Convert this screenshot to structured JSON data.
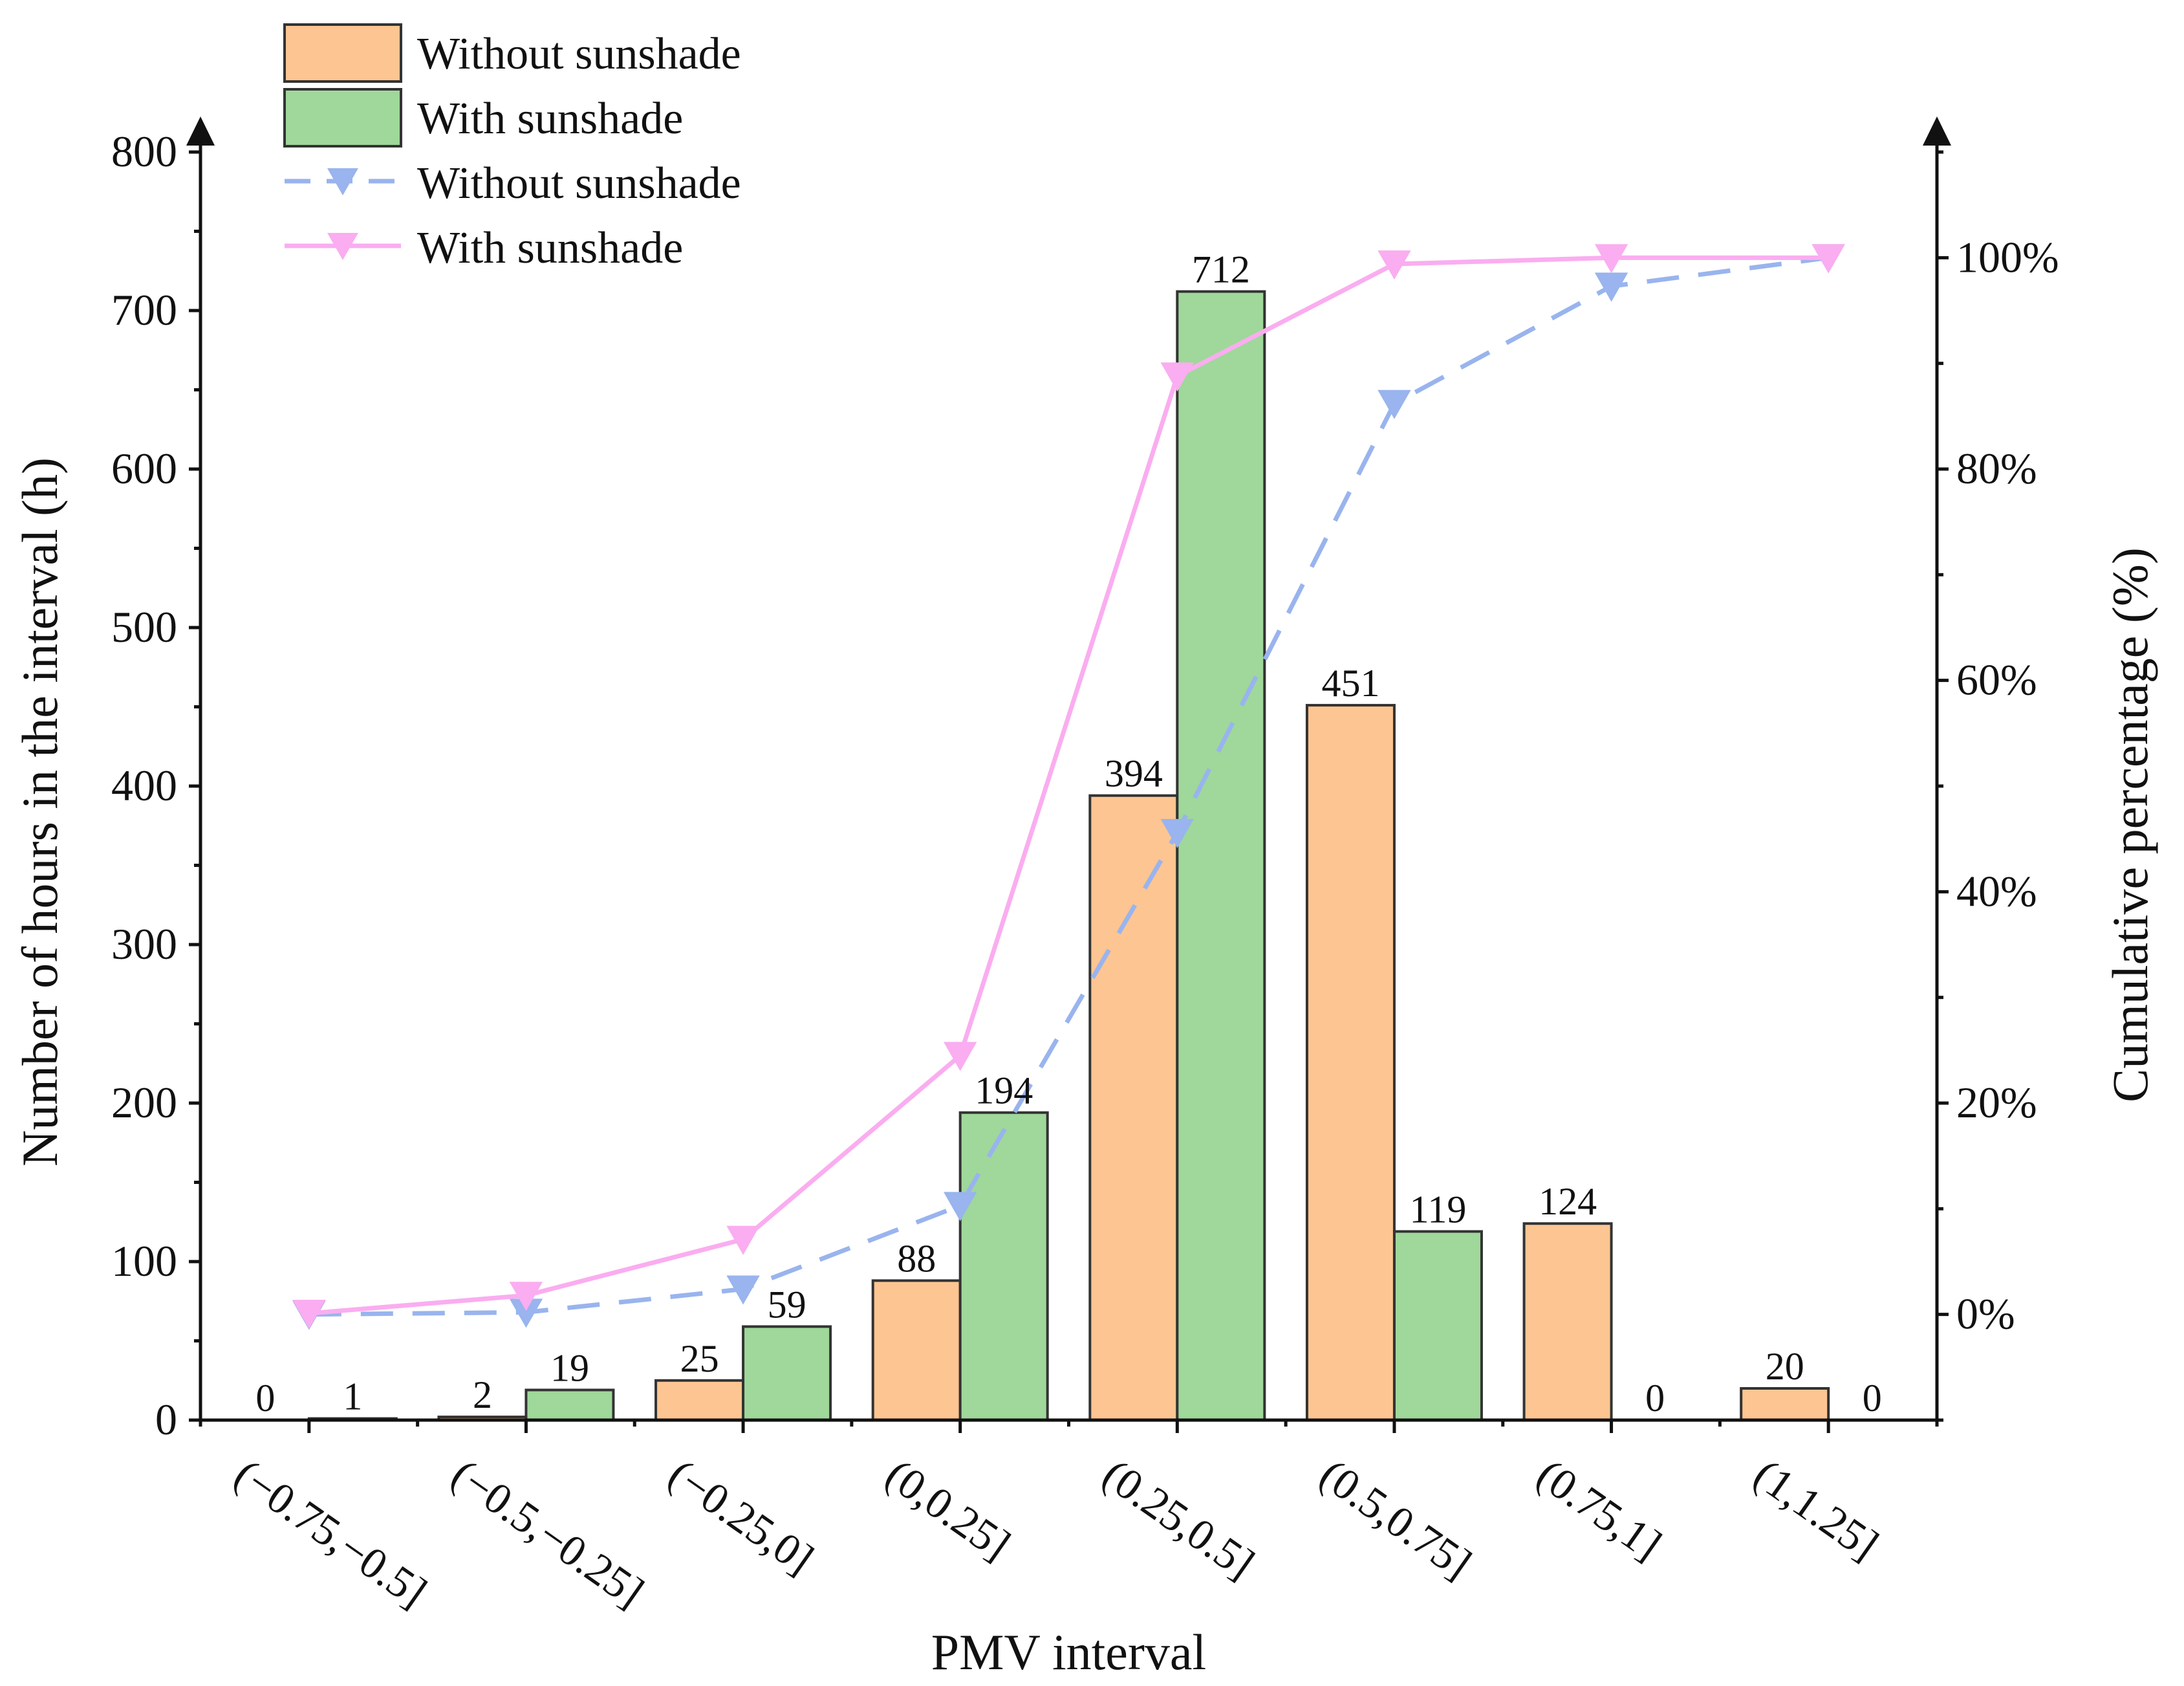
{
  "chart_data": {
    "type": "bar",
    "title": "",
    "xlabel": "PMV interval",
    "ylabel": "Number of hours in the interval (h)",
    "y2label": "Cumulative percentage (%)",
    "ylim": [
      0,
      800
    ],
    "yticks": [
      0,
      100,
      200,
      300,
      400,
      500,
      600,
      700,
      800
    ],
    "y2lim": [
      -10,
      110
    ],
    "y2ticks": [
      0,
      20,
      40,
      60,
      80,
      100
    ],
    "y2tick_labels": [
      "0%",
      "20%",
      "40%",
      "60%",
      "80%",
      "100%"
    ],
    "categories": [
      "(−0.75,−0.5]",
      "(−0.5,−0.25]",
      "(−0.25,0]",
      "(0,0.25]",
      "(0.25,0.5]",
      "(0.5,0.75]",
      "(0.75,1]",
      "(1,1.25]"
    ],
    "series": [
      {
        "name": "Without sunshade",
        "kind": "bar",
        "color": "#FDC591",
        "values": [
          0,
          2,
          25,
          88,
          394,
          451,
          124,
          20
        ]
      },
      {
        "name": "With sunshade",
        "kind": "bar",
        "color": "#9FD89A",
        "values": [
          1,
          19,
          59,
          194,
          712,
          119,
          0,
          0
        ]
      },
      {
        "name": "Without sunshade",
        "kind": "line",
        "axis": "right",
        "style": "dashed",
        "color": "#99B4EE",
        "values": [
          0.0,
          0.2,
          2.4,
          10.3,
          45.6,
          86.2,
          97.3,
          100.0
        ]
      },
      {
        "name": "With sunshade",
        "kind": "line",
        "axis": "right",
        "style": "solid",
        "color": "#FAADF0",
        "values": [
          0.1,
          1.8,
          7.1,
          24.5,
          88.8,
          99.4,
          100.0,
          100.0
        ]
      }
    ],
    "legend": "top-left",
    "legend_labels": [
      "Without sunshade",
      "With sunshade",
      "Without sunshade",
      "With sunshade"
    ]
  }
}
